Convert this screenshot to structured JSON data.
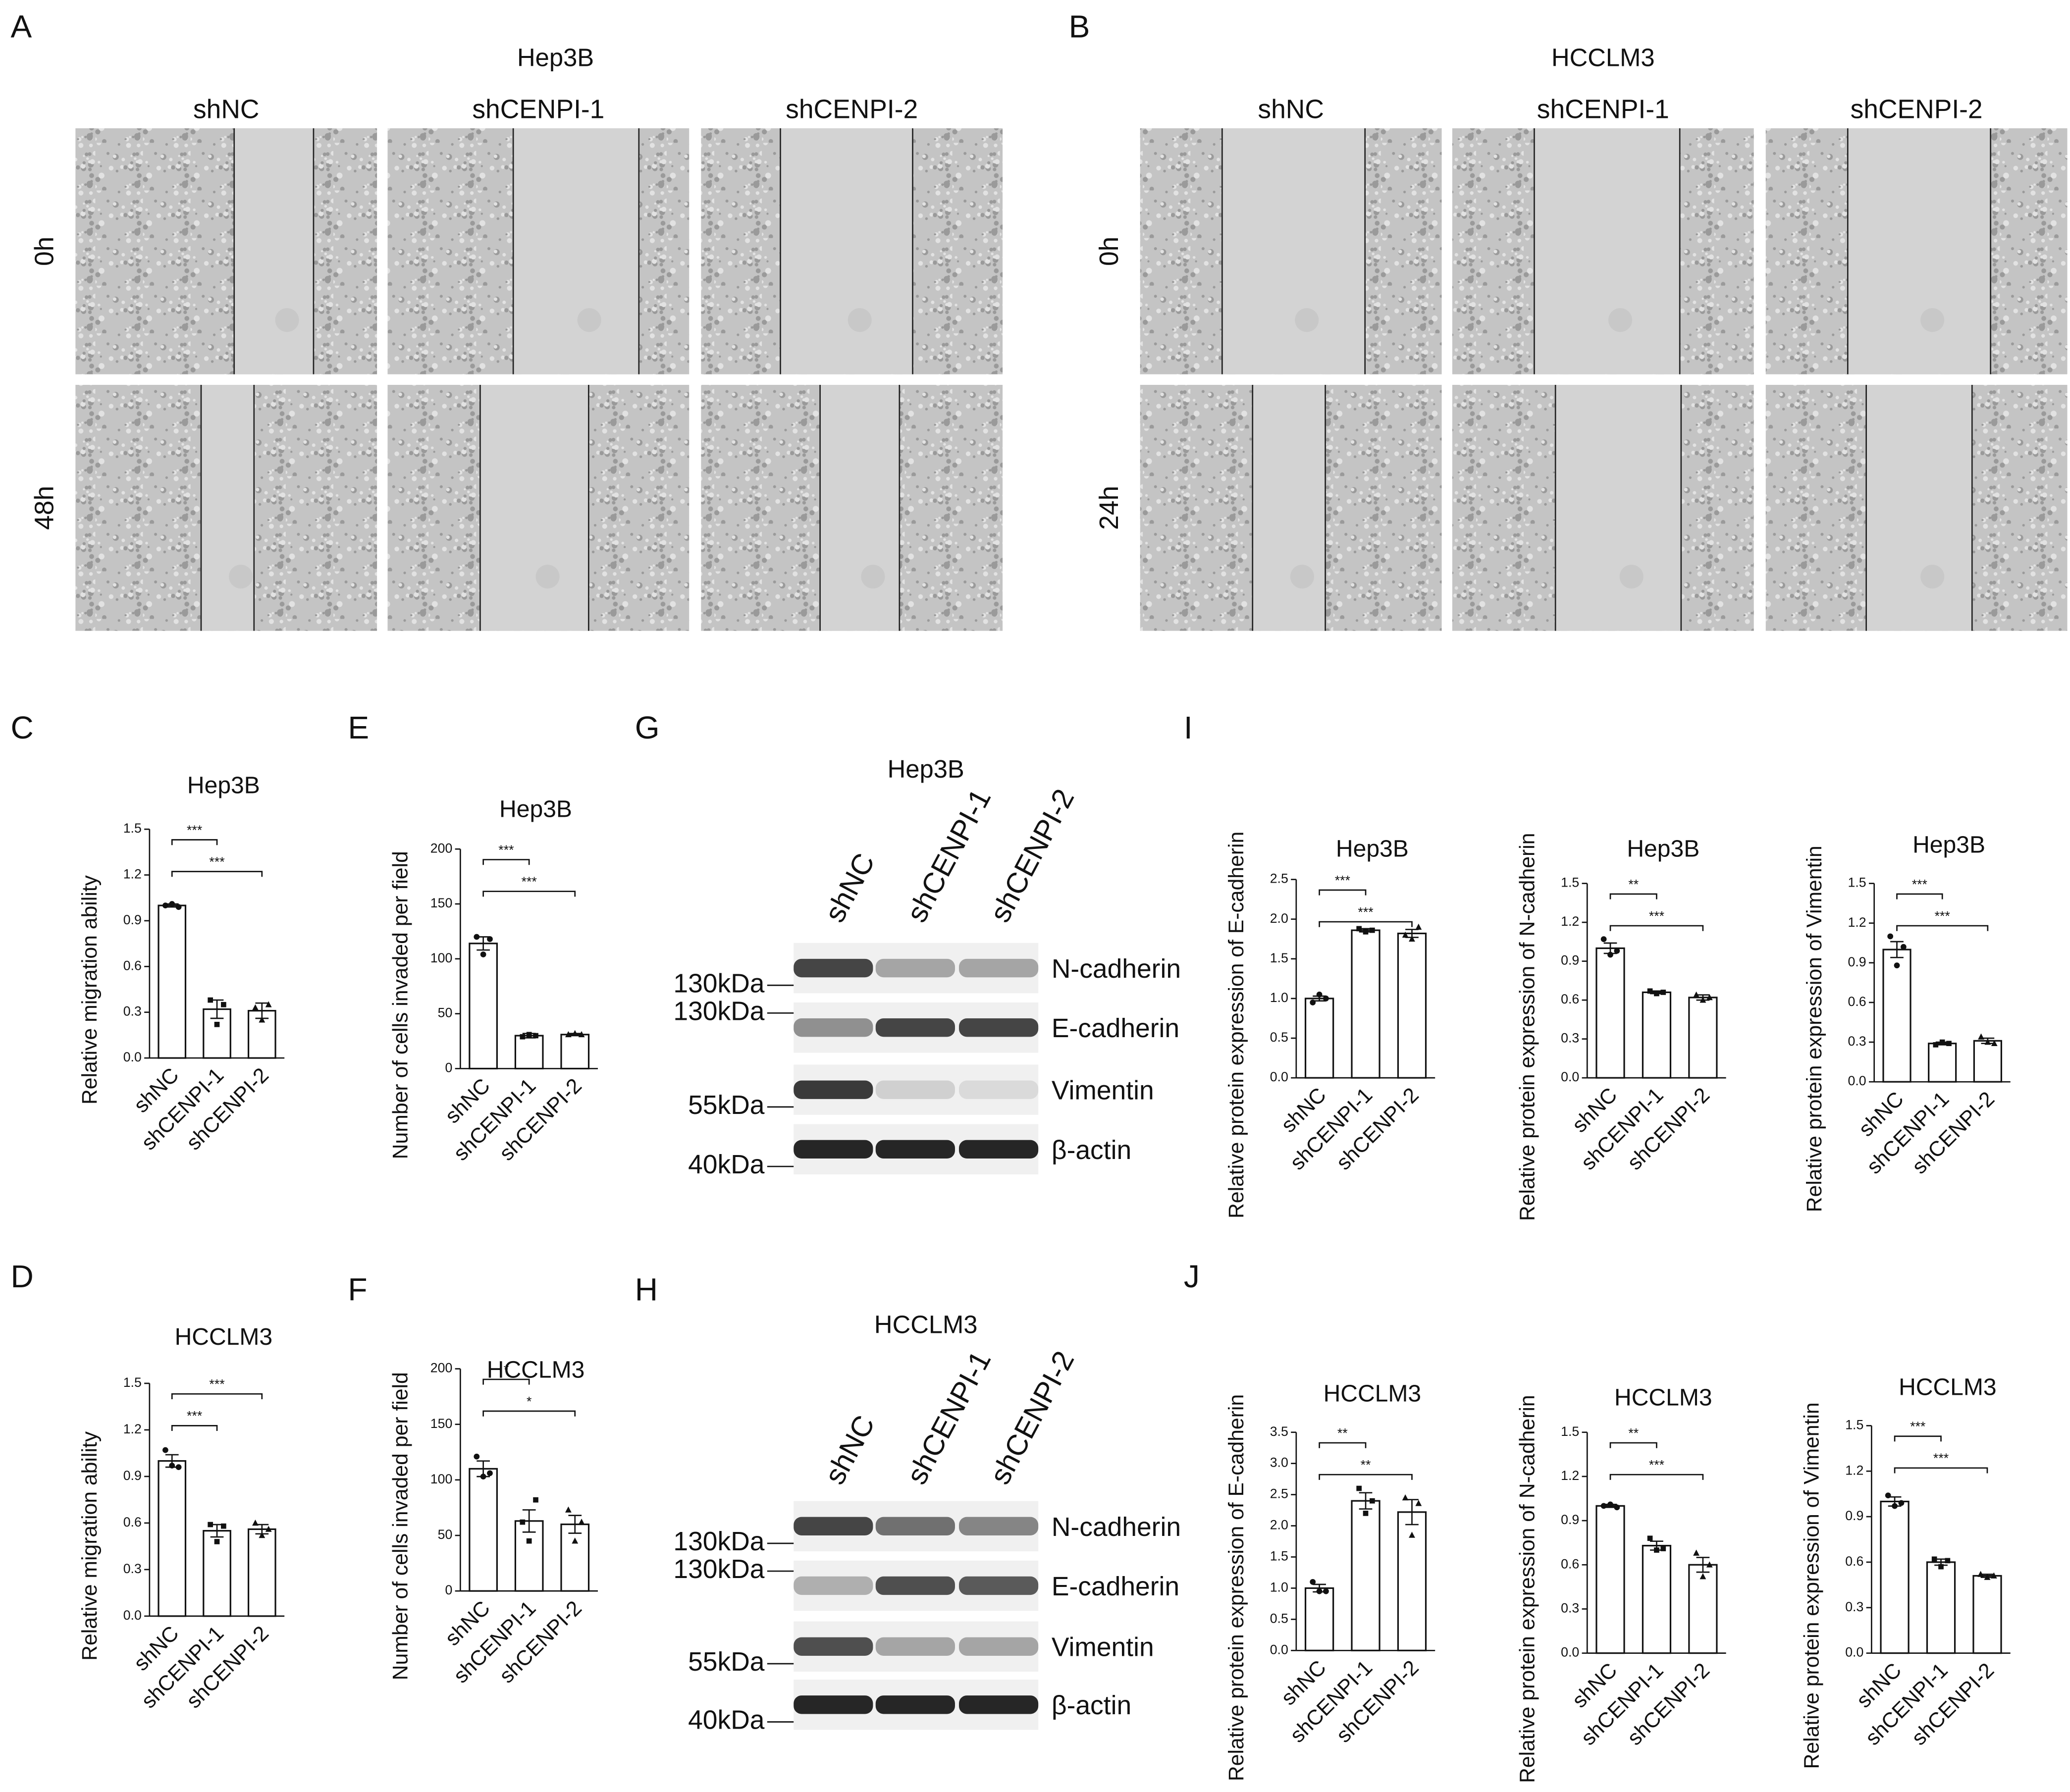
{
  "scratch_assays": [
    {
      "panel_label": "A",
      "title": "Hep3B",
      "columns": [
        "shNC",
        "shCENPI-1",
        "shCENPI-2"
      ],
      "rows": [
        "0h",
        "48h"
      ]
    },
    {
      "panel_label": "B",
      "title": "HCCLM3",
      "columns": [
        "shNC",
        "shCENPI-1",
        "shCENPI-2"
      ],
      "rows": [
        "0h",
        "24h"
      ]
    }
  ],
  "western_blots": [
    {
      "panel_label": "G",
      "title": "Hep3B",
      "lanes": [
        "shNC",
        "shCENPI-1",
        "shCENPI-2"
      ],
      "bands": [
        {
          "protein": "N-cadherin",
          "marker": "130kDa"
        },
        {
          "protein": "E-cadherin",
          "marker": "130kDa"
        },
        {
          "protein": "Vimentin",
          "marker": "55kDa"
        },
        {
          "protein": "β-actin",
          "marker": "40kDa"
        }
      ]
    },
    {
      "panel_label": "H",
      "title": "HCCLM3",
      "lanes": [
        "shNC",
        "shCENPI-1",
        "shCENPI-2"
      ],
      "bands": [
        {
          "protein": "N-cadherin",
          "marker": "130kDa"
        },
        {
          "protein": "E-cadherin",
          "marker": "130kDa"
        },
        {
          "protein": "Vimentin",
          "marker": "55kDa"
        },
        {
          "protein": "β-actin",
          "marker": "40kDa"
        }
      ]
    }
  ],
  "chart_data": [
    {
      "type": "bar",
      "panel_label": "C",
      "title": "Hep3B",
      "y_label": "Relative migration ability",
      "categories": [
        "shNC",
        "shCENPI-1",
        "shCENPI-2"
      ],
      "values": [
        1.0,
        0.32,
        0.31
      ],
      "errors": [
        0.01,
        0.06,
        0.05
      ],
      "points": [
        [
          1.0,
          1.01,
          0.99
        ],
        [
          0.38,
          0.22,
          0.35
        ],
        [
          0.33,
          0.25,
          0.35
        ]
      ],
      "ylim": [
        0,
        1.5
      ],
      "yticks": [
        {
          "value": 0,
          "label": "0.0"
        },
        0.3,
        0.6,
        0.9,
        1.2,
        1.5
      ],
      "significance": [
        {
          "label": "***",
          "between": [
            "shNC",
            "shCENPI-1"
          ]
        },
        {
          "label": "***",
          "between": [
            "shNC",
            "shCENPI-2"
          ]
        }
      ]
    },
    {
      "type": "bar",
      "panel_label": "D",
      "title": "HCCLM3",
      "y_label": "Relative migration ability",
      "categories": [
        "shNC",
        "shCENPI-1",
        "shCENPI-2"
      ],
      "values": [
        1.0,
        0.55,
        0.56
      ],
      "errors": [
        0.04,
        0.04,
        0.03
      ],
      "points": [
        [
          1.07,
          0.97,
          0.96
        ],
        [
          0.59,
          0.48,
          0.58
        ],
        [
          0.6,
          0.52,
          0.56
        ]
      ],
      "ylim": [
        0,
        1.5
      ],
      "yticks": [
        {
          "value": 0,
          "label": "0.0"
        },
        0.3,
        0.6,
        0.9,
        1.2,
        1.5
      ],
      "significance": [
        {
          "label": "***",
          "between": [
            "shNC",
            "shCENPI-2"
          ]
        },
        {
          "label": "***",
          "between": [
            "shNC",
            "shCENPI-1"
          ]
        }
      ]
    },
    {
      "type": "bar",
      "panel_label": "E",
      "title": "Hep3B",
      "y_label": "Number of cells invaded per field",
      "categories": [
        "shNC",
        "shCENPI-1",
        "shCENPI-2"
      ],
      "values": [
        114,
        30,
        31
      ],
      "errors": [
        6,
        2,
        1
      ],
      "points": [
        [
          120,
          104,
          118
        ],
        [
          29,
          31,
          30
        ],
        [
          31,
          32,
          31
        ]
      ],
      "ylim": [
        0,
        200
      ],
      "yticks": [
        0,
        50,
        100,
        150,
        200
      ],
      "significance": [
        {
          "label": "***",
          "between": [
            "shNC",
            "shCENPI-1"
          ]
        },
        {
          "label": "***",
          "between": [
            "shNC",
            "shCENPI-2"
          ]
        }
      ]
    },
    {
      "type": "bar",
      "panel_label": "F",
      "title": "HCCLM3",
      "y_label": "Number of cells invaded per field",
      "categories": [
        "shNC",
        "shCENPI-1",
        "shCENPI-2"
      ],
      "values": [
        110,
        63,
        60
      ],
      "errors": [
        7,
        10,
        8
      ],
      "points": [
        [
          121,
          103,
          106
        ],
        [
          62,
          45,
          82
        ],
        [
          73,
          45,
          62
        ]
      ],
      "ylim": [
        0,
        200
      ],
      "yticks": [
        0,
        50,
        100,
        150,
        200
      ],
      "significance": [
        {
          "label": "*",
          "between": [
            "shNC",
            "shCENPI-1"
          ]
        },
        {
          "label": "*",
          "between": [
            "shNC",
            "shCENPI-2"
          ]
        }
      ]
    },
    {
      "type": "bar",
      "panel_label": "I",
      "title": "Hep3B",
      "y_label": "Relative protein expression of E-cadherin",
      "categories": [
        "shNC",
        "shCENPI-1",
        "shCENPI-2"
      ],
      "values": [
        1.0,
        1.86,
        1.82
      ],
      "errors": [
        0.03,
        0.02,
        0.05
      ],
      "points": [
        [
          0.95,
          1.05,
          1.0
        ],
        [
          1.88,
          1.84,
          1.86
        ],
        [
          1.8,
          1.75,
          1.9
        ]
      ],
      "ylim": [
        0,
        2.5
      ],
      "yticks": [
        {
          "value": 0,
          "label": "0.0"
        },
        0.5,
        {
          "value": 1,
          "label": "1.0"
        },
        1.5,
        {
          "value": 2,
          "label": "2.0"
        },
        2.5
      ],
      "significance": [
        {
          "label": "***",
          "between": [
            "shNC",
            "shCENPI-1"
          ]
        },
        {
          "label": "***",
          "between": [
            "shNC",
            "shCENPI-2"
          ]
        }
      ]
    },
    {
      "type": "bar",
      "title": "Hep3B",
      "y_label": "Relative protein expression of N-cadherin",
      "categories": [
        "shNC",
        "shCENPI-1",
        "shCENPI-2"
      ],
      "values": [
        1.0,
        0.66,
        0.62
      ],
      "errors": [
        0.04,
        0.01,
        0.02
      ],
      "points": [
        [
          1.07,
          0.95,
          0.98
        ],
        [
          0.67,
          0.65,
          0.66
        ],
        [
          0.64,
          0.6,
          0.62
        ]
      ],
      "ylim": [
        0,
        1.5
      ],
      "yticks": [
        {
          "value": 0,
          "label": "0.0"
        },
        0.3,
        0.6,
        0.9,
        1.2,
        1.5
      ],
      "significance": [
        {
          "label": "**",
          "between": [
            "shNC",
            "shCENPI-1"
          ]
        },
        {
          "label": "***",
          "between": [
            "shNC",
            "shCENPI-2"
          ]
        }
      ]
    },
    {
      "type": "bar",
      "title": "Hep3B",
      "y_label": "Relative protein expression of Vimentin",
      "categories": [
        "shNC",
        "shCENPI-1",
        "shCENPI-2"
      ],
      "values": [
        1.0,
        0.29,
        0.31
      ],
      "errors": [
        0.06,
        0.01,
        0.02
      ],
      "points": [
        [
          1.1,
          0.88,
          1.02
        ],
        [
          0.28,
          0.3,
          0.29
        ],
        [
          0.34,
          0.3,
          0.29
        ]
      ],
      "ylim": [
        0,
        1.5
      ],
      "yticks": [
        {
          "value": 0,
          "label": "0.0"
        },
        0.3,
        0.6,
        0.9,
        1.2,
        1.5
      ],
      "significance": [
        {
          "label": "***",
          "between": [
            "shNC",
            "shCENPI-1"
          ]
        },
        {
          "label": "***",
          "between": [
            "shNC",
            "shCENPI-2"
          ]
        }
      ]
    },
    {
      "type": "bar",
      "panel_label": "J",
      "title": "HCCLM3",
      "y_label": "Relative protein expression of E-cadherin",
      "categories": [
        "shNC",
        "shCENPI-1",
        "shCENPI-2"
      ],
      "values": [
        1.0,
        2.4,
        2.22
      ],
      "errors": [
        0.06,
        0.13,
        0.2
      ],
      "points": [
        [
          1.1,
          0.95,
          0.95
        ],
        [
          2.6,
          2.2,
          2.4
        ],
        [
          2.45,
          1.85,
          2.36
        ]
      ],
      "ylim": [
        0,
        3.5
      ],
      "yticks": [
        {
          "value": 0,
          "label": "0.0"
        },
        0.5,
        {
          "value": 1,
          "label": "1.0"
        },
        1.5,
        {
          "value": 2,
          "label": "2.0"
        },
        2.5,
        {
          "value": 3,
          "label": "3.0"
        },
        3.5
      ],
      "significance": [
        {
          "label": "**",
          "between": [
            "shNC",
            "shCENPI-1"
          ]
        },
        {
          "label": "**",
          "between": [
            "shNC",
            "shCENPI-2"
          ]
        }
      ]
    },
    {
      "type": "bar",
      "title": "HCCLM3",
      "y_label": "Relative protein expression of N-cadherin",
      "categories": [
        "shNC",
        "shCENPI-1",
        "shCENPI-2"
      ],
      "values": [
        1.0,
        0.73,
        0.6
      ],
      "errors": [
        0.01,
        0.03,
        0.05
      ],
      "points": [
        [
          1.0,
          1.01,
          0.99
        ],
        [
          0.78,
          0.7,
          0.71
        ],
        [
          0.68,
          0.52,
          0.6
        ]
      ],
      "ylim": [
        0,
        1.5
      ],
      "yticks": [
        {
          "value": 0,
          "label": "0.0"
        },
        0.3,
        0.6,
        0.9,
        1.2,
        1.5
      ],
      "significance": [
        {
          "label": "**",
          "between": [
            "shNC",
            "shCENPI-1"
          ]
        },
        {
          "label": "***",
          "between": [
            "shNC",
            "shCENPI-2"
          ]
        }
      ]
    },
    {
      "type": "bar",
      "title": "HCCLM3",
      "y_label": "Relative protein expression of Vimentin",
      "categories": [
        "shNC",
        "shCENPI-1",
        "shCENPI-2"
      ],
      "values": [
        1.0,
        0.6,
        0.51
      ],
      "errors": [
        0.03,
        0.02,
        0.01
      ],
      "points": [
        [
          1.04,
          0.97,
          0.99
        ],
        [
          0.62,
          0.57,
          0.61
        ],
        [
          0.52,
          0.5,
          0.51
        ]
      ],
      "ylim": [
        0,
        1.5
      ],
      "yticks": [
        {
          "value": 0,
          "label": "0.0"
        },
        0.3,
        0.6,
        0.9,
        1.2,
        1.5
      ],
      "significance": [
        {
          "label": "***",
          "between": [
            "shNC",
            "shCENPI-1"
          ]
        },
        {
          "label": "***",
          "between": [
            "shNC",
            "shCENPI-2"
          ]
        }
      ]
    }
  ]
}
